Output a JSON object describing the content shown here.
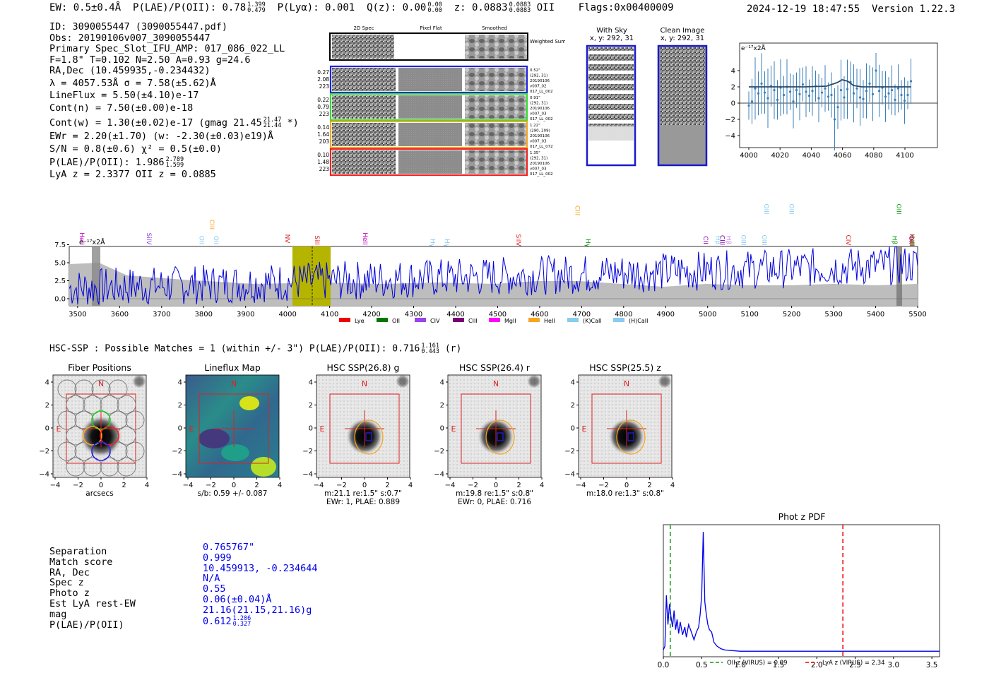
{
  "header": {
    "ew": "EW: 0.5±0.4Å",
    "plae_label": "P(LAE)/P(OII): 0.78",
    "plae_hi": "1.399",
    "plae_lo": "0.479",
    "plya": "P(Lyα): 0.001",
    "qz_label": "Q(z): 0.00",
    "qz_hi": "0.00",
    "qz_lo": "0.00",
    "z_label": "z: 0.0883",
    "z_hi": "0.0883",
    "z_lo": "0.0883",
    "z_line": "OII",
    "flags": "Flags:0x00400009",
    "timestamp": "2024-12-19 18:47:55",
    "version": "Version 1.22.3"
  },
  "info": {
    "id": "ID: 3090055447 (3090055447.pdf)",
    "obs": "Obs: 20190106v007_3090055447",
    "primary": "Primary Spec_Slot_IFU_AMP: 017_086_022_LL",
    "params": "F=1.8\"  T=0.102  N=2.50  A=0.93  g=24.6",
    "radec": "RA,Dec (10.459935,-0.234432)",
    "lambda": "λ = 4057.53Å  σ = 7.58(±5.62)Å",
    "lineflux": "LineFlux = 5.50(±4.10)e-17",
    "contn": "Cont(n) = 7.50(±0.00)e-18",
    "contw": "Cont(w) = 1.30(±0.02)e-17 (gmag 21.45",
    "contw_hi": "21.47",
    "contw_lo": "21.44",
    "contw_end": "*)",
    "ewr": "EWr = 2.20(±1.70) (w: -2.30(±0.03)e19)Å",
    "sn": "S/N = 0.8(±0.6)  χ² = 0.5(±0.0)",
    "plae": "P(LAE)/P(OII): 1.986",
    "plae_hi": "2.789",
    "plae_lo": "1.599",
    "lyaz": "LyA z = 2.3377   OII z = 0.0885"
  },
  "cutouts": {
    "col_headers": [
      "2D Spec",
      "Pixel Flat",
      "Smoothed"
    ],
    "weighted_label": "Weighted Sum",
    "rows": [
      {
        "left": [
          "0.27",
          "2.08",
          "223"
        ],
        "right": [
          "0.52\"",
          "(292, 31)",
          "20190106",
          "v007_02",
          "017_LL_002"
        ],
        "color": "#2222dd"
      },
      {
        "left": [
          "0.22",
          "0.79",
          "223"
        ],
        "right": [
          "0.91\"",
          "(292, 31)",
          "20190106",
          "v007_03",
          "017_LL_002"
        ],
        "color": "#33dd33"
      },
      {
        "left": [
          "0.14",
          "1.64",
          "203"
        ],
        "right": [
          "1.22\"",
          "(290, 209)",
          "20190106",
          "v007_03",
          "017_LL_072"
        ],
        "color": "#f5a623"
      },
      {
        "left": [
          "0.10",
          "1.48",
          "223"
        ],
        "right": [
          "1.35\"",
          "(292, 31)",
          "20190106",
          "v007_03",
          "017_LL_002"
        ],
        "color": "#ee2222"
      }
    ],
    "with_sky_title": "With Sky",
    "with_sky_sub": "x, y: 292, 31",
    "clean_title": "Clean Image",
    "clean_sub": "x, y: 292, 31"
  },
  "line_fit": {
    "unit": "e⁻¹⁷x2Å",
    "x_ticks": [
      "4000",
      "4020",
      "4040",
      "4060",
      "4080",
      "4100"
    ],
    "y_ticks": [
      "4",
      "2",
      "0",
      "−2",
      "−4"
    ]
  },
  "spectrum": {
    "unit": "e⁻¹⁷x2Å",
    "x_ticks": [
      "3500",
      "3600",
      "3700",
      "3800",
      "3900",
      "4000",
      "4100",
      "4200",
      "4300",
      "4400",
      "4500",
      "4600",
      "4700",
      "4800",
      "4900",
      "5000",
      "5100",
      "5200",
      "5300",
      "5400",
      "5500"
    ],
    "y_ticks": [
      "7.5",
      "5.0",
      "2.5",
      "0.0"
    ],
    "line_markers": [
      {
        "name": "HeII",
        "color": "#cc00cc"
      },
      {
        "name": "SiIV",
        "color": "#8844dd"
      },
      {
        "name": "OII",
        "color": "#88ccee"
      },
      {
        "name": "CIII",
        "color": "#f5a623"
      },
      {
        "name": "OII",
        "color": "#88ccee"
      },
      {
        "name": "NV",
        "color": "#dd2222"
      },
      {
        "name": "SiII",
        "color": "#dd2222"
      },
      {
        "name": "HeII",
        "color": "#cc00cc"
      },
      {
        "name": "Hγ",
        "color": "#88ccee"
      },
      {
        "name": "Hγ",
        "color": "#88ccee"
      },
      {
        "name": "SiIV",
        "color": "#dd2222"
      },
      {
        "name": "CIII",
        "color": "#f5a623"
      },
      {
        "name": "Hγ",
        "color": "#119911"
      },
      {
        "name": "CII",
        "color": "#8800aa"
      },
      {
        "name": "Hβ",
        "color": "#88ccee"
      },
      {
        "name": "CIII",
        "color": "#8800aa"
      },
      {
        "name": "Hβ",
        "color": "#cc88ee"
      },
      {
        "name": "OIII",
        "color": "#88ccee"
      },
      {
        "name": "OIII",
        "color": "#88ccee"
      },
      {
        "name": "OIII",
        "color": "#88ccee"
      },
      {
        "name": "OIII",
        "color": "#88ccee"
      },
      {
        "name": "CIV",
        "color": "#dd2222"
      },
      {
        "name": "Hβ",
        "color": "#119911"
      },
      {
        "name": "OIII",
        "color": "#119911"
      },
      {
        "name": "OII",
        "color": "#cc00cc"
      },
      {
        "name": "OIII",
        "color": "#119911"
      },
      {
        "name": "HeII",
        "color": "#dd2222"
      }
    ],
    "legend": [
      {
        "label": "Lyα",
        "color": "#ee0000"
      },
      {
        "label": "OII",
        "color": "#007700"
      },
      {
        "label": "CIV",
        "color": "#9944ee"
      },
      {
        "label": "CIII",
        "color": "#770077"
      },
      {
        "label": "MgII",
        "color": "#ff00ff"
      },
      {
        "label": "HeII",
        "color": "#f5a623"
      },
      {
        "label": "(K)CaII",
        "color": "#88ccee"
      },
      {
        "label": "(H)CaII",
        "color": "#88ccee"
      }
    ]
  },
  "hsc": {
    "summary": "HSC-SSP : Possible Matches = 1 (within +/- 3\")  P(LAE)/P(OII): 0.716",
    "summary_hi": "1.161",
    "summary_lo": "0.443",
    "summary_end": "(r)",
    "panels": [
      {
        "title": "Fiber Positions",
        "caption1": "arcsecs",
        "caption2": ""
      },
      {
        "title": "Lineflux Map",
        "caption1": "s/b: 0.59 +/- 0.087",
        "caption2": ""
      },
      {
        "title": "HSC SSP(26.8) g",
        "caption1": "m:21.1  re:1.5\"  s:0.7\"",
        "caption2": "EWr: 1, PLAE: 0.889"
      },
      {
        "title": "HSC SSP(26.4) r",
        "caption1": "m:19.8  re:1.5\"  s:0.8\"",
        "caption2": "EWr: 0, PLAE: 0.716"
      },
      {
        "title": "HSC SSP(25.5) z",
        "caption1": "m:18.0  re:1.3\"  s:0.8\"",
        "caption2": ""
      }
    ],
    "x_ticks": [
      "−4",
      "−2",
      "0",
      "2",
      "4"
    ],
    "y_ticks": [
      "4",
      "2",
      "0",
      "−2",
      "−4"
    ],
    "n_label": "N",
    "e_label": "E"
  },
  "match": {
    "labels": [
      "Separation",
      "Match score",
      "RA, Dec",
      "Spec z",
      "Photo z",
      "Est LyA rest-EW",
      "mag",
      "P(LAE)/P(OII)"
    ],
    "values": [
      "0.765767\"",
      "0.999",
      "10.459913, -0.234644",
      "N/A",
      "0.55",
      "0.06(±0.04)Å",
      "21.16(21.15,21.16)g",
      "0.612"
    ],
    "plae_hi": "1.206",
    "plae_lo": "0.327"
  },
  "chart_data": [
    {
      "type": "line",
      "title": "Phot z PDF",
      "x_ticks": [
        "0.0",
        "0.5",
        "1.0",
        "1.5",
        "2.0",
        "2.5",
        "3.0",
        "3.5"
      ],
      "xlim": [
        0,
        3.6
      ],
      "x": [
        0.0,
        0.02,
        0.04,
        0.06,
        0.08,
        0.1,
        0.12,
        0.14,
        0.16,
        0.18,
        0.2,
        0.22,
        0.25,
        0.28,
        0.3,
        0.33,
        0.36,
        0.4,
        0.43,
        0.46,
        0.48,
        0.5,
        0.52,
        0.54,
        0.56,
        0.58,
        0.6,
        0.63,
        0.66,
        0.7,
        0.75,
        0.8,
        0.9,
        1.0,
        1.2,
        1.5,
        2.0,
        2.5,
        3.0,
        3.6
      ],
      "y": [
        0.02,
        0.05,
        0.45,
        0.22,
        0.38,
        0.28,
        0.2,
        0.33,
        0.18,
        0.26,
        0.15,
        0.24,
        0.14,
        0.2,
        0.12,
        0.22,
        0.17,
        0.1,
        0.16,
        0.2,
        0.3,
        0.45,
        0.95,
        0.4,
        0.3,
        0.22,
        0.18,
        0.16,
        0.08,
        0.05,
        0.03,
        0.02,
        0.015,
        0.01,
        0.01,
        0.01,
        0.01,
        0.01,
        0.01,
        0.01
      ],
      "vlines": [
        {
          "label": "OII z (VIRUS) = 0.09",
          "x": 0.09,
          "color": "#119911"
        },
        {
          "label": "LyA z (VIRUS) = 2.34",
          "x": 2.34,
          "color": "#ee0000"
        }
      ]
    }
  ]
}
